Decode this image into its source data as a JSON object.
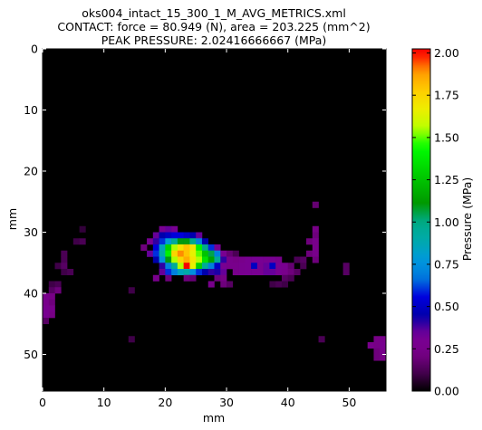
{
  "chart_data": {
    "type": "heatmap",
    "title_lines": [
      "oks004_intact_15_300_1_M_AVG_METRICS.xml",
      "CONTACT: force = 80.949 (N), area = 203.225 (mm^2)",
      "PEAK PRESSURE: 2.02416666667 (MPa)"
    ],
    "xlabel": "mm",
    "ylabel": "mm",
    "xlim": [
      0,
      56
    ],
    "ylim": [
      0,
      56
    ],
    "y_inverted": true,
    "x_ticks": [
      0,
      10,
      20,
      30,
      40,
      50
    ],
    "y_ticks": [
      0,
      10,
      20,
      30,
      40,
      50
    ],
    "colorbar": {
      "label": "Pressure (MPa)",
      "range": [
        0.0,
        2.02416666667
      ],
      "ticks": [
        "0.00",
        "0.25",
        "0.50",
        "0.75",
        "1.00",
        "1.25",
        "1.50",
        "1.75",
        "2.00"
      ],
      "colormap": "nipy_spectral"
    },
    "background_value": 0,
    "cells": [
      [
        44,
        25,
        0.18
      ],
      [
        6,
        29,
        0.08
      ],
      [
        44,
        29,
        0.22
      ],
      [
        19,
        29,
        0.3
      ],
      [
        20,
        29,
        0.35
      ],
      [
        21,
        29,
        0.3
      ],
      [
        44,
        30,
        0.2
      ],
      [
        5,
        31,
        0.1
      ],
      [
        6,
        31,
        0.12
      ],
      [
        43,
        31,
        0.2
      ],
      [
        44,
        31,
        0.25
      ],
      [
        18,
        30,
        0.35
      ],
      [
        19,
        30,
        0.45
      ],
      [
        20,
        30,
        0.5
      ],
      [
        21,
        30,
        0.55
      ],
      [
        22,
        30,
        0.55
      ],
      [
        23,
        30,
        0.5
      ],
      [
        24,
        30,
        0.45
      ],
      [
        25,
        30,
        0.35
      ],
      [
        17,
        31,
        0.3
      ],
      [
        18,
        31,
        0.4
      ],
      [
        19,
        31,
        0.6
      ],
      [
        20,
        31,
        0.8
      ],
      [
        21,
        31,
        0.95
      ],
      [
        22,
        31,
        1.1
      ],
      [
        23,
        31,
        1.1
      ],
      [
        24,
        31,
        1.0
      ],
      [
        25,
        31,
        0.7
      ],
      [
        26,
        31,
        0.45
      ],
      [
        16,
        32,
        0.2
      ],
      [
        18,
        32,
        0.55
      ],
      [
        19,
        32,
        0.85
      ],
      [
        20,
        32,
        1.3
      ],
      [
        21,
        32,
        1.55
      ],
      [
        22,
        32,
        1.7
      ],
      [
        23,
        32,
        1.8
      ],
      [
        24,
        32,
        1.7
      ],
      [
        25,
        32,
        1.4
      ],
      [
        26,
        32,
        1.0
      ],
      [
        27,
        32,
        0.6
      ],
      [
        28,
        32,
        0.3
      ],
      [
        44,
        32,
        0.25
      ],
      [
        3,
        33,
        0.12
      ],
      [
        17,
        33,
        0.35
      ],
      [
        18,
        33,
        0.6
      ],
      [
        19,
        33,
        0.9
      ],
      [
        20,
        33,
        1.4
      ],
      [
        21,
        33,
        1.75
      ],
      [
        22,
        33,
        1.9
      ],
      [
        23,
        33,
        1.8
      ],
      [
        24,
        33,
        1.65
      ],
      [
        25,
        33,
        1.5
      ],
      [
        26,
        33,
        1.25
      ],
      [
        27,
        33,
        1.05
      ],
      [
        28,
        33,
        0.7
      ],
      [
        29,
        33,
        0.3
      ],
      [
        30,
        33,
        0.18
      ],
      [
        31,
        33,
        0.12
      ],
      [
        43,
        33,
        0.2
      ],
      [
        44,
        33,
        0.25
      ],
      [
        3,
        34,
        0.12
      ],
      [
        18,
        34,
        0.45
      ],
      [
        19,
        34,
        0.75
      ],
      [
        20,
        34,
        1.1
      ],
      [
        21,
        34,
        1.55
      ],
      [
        22,
        34,
        1.75
      ],
      [
        23,
        34,
        1.85
      ],
      [
        24,
        34,
        1.7
      ],
      [
        25,
        34,
        1.55
      ],
      [
        26,
        34,
        1.35
      ],
      [
        27,
        34,
        1.15
      ],
      [
        28,
        34,
        0.95
      ],
      [
        29,
        34,
        0.4
      ],
      [
        30,
        34,
        0.25
      ],
      [
        31,
        34,
        0.22
      ],
      [
        32,
        34,
        0.25
      ],
      [
        33,
        34,
        0.3
      ],
      [
        34,
        34,
        0.32
      ],
      [
        35,
        34,
        0.32
      ],
      [
        36,
        34,
        0.3
      ],
      [
        37,
        34,
        0.3
      ],
      [
        38,
        34,
        0.25
      ],
      [
        41,
        34,
        0.12
      ],
      [
        42,
        34,
        0.15
      ],
      [
        44,
        34,
        0.2
      ],
      [
        2,
        35,
        0.1
      ],
      [
        3,
        35,
        0.15
      ],
      [
        19,
        35,
        0.4
      ],
      [
        20,
        35,
        0.7
      ],
      [
        21,
        35,
        0.95
      ],
      [
        22,
        35,
        1.55
      ],
      [
        23,
        35,
        2.02
      ],
      [
        24,
        35,
        1.65
      ],
      [
        25,
        35,
        1.3
      ],
      [
        26,
        35,
        0.95
      ],
      [
        27,
        35,
        0.7
      ],
      [
        28,
        35,
        0.5
      ],
      [
        29,
        35,
        0.3
      ],
      [
        30,
        35,
        0.25
      ],
      [
        31,
        35,
        0.25
      ],
      [
        32,
        35,
        0.28
      ],
      [
        33,
        35,
        0.3
      ],
      [
        34,
        35,
        0.5
      ],
      [
        35,
        35,
        0.3
      ],
      [
        36,
        35,
        0.35
      ],
      [
        37,
        35,
        0.5
      ],
      [
        38,
        35,
        0.3
      ],
      [
        39,
        35,
        0.28
      ],
      [
        40,
        35,
        0.18
      ],
      [
        42,
        35,
        0.12
      ],
      [
        49,
        35,
        0.15
      ],
      [
        3,
        36,
        0.1
      ],
      [
        4,
        36,
        0.12
      ],
      [
        19,
        36,
        0.35
      ],
      [
        20,
        36,
        0.6
      ],
      [
        21,
        36,
        0.7
      ],
      [
        22,
        36,
        0.85
      ],
      [
        23,
        36,
        0.9
      ],
      [
        24,
        36,
        0.75
      ],
      [
        25,
        36,
        0.6
      ],
      [
        26,
        36,
        0.45
      ],
      [
        27,
        36,
        0.4
      ],
      [
        28,
        36,
        0.42
      ],
      [
        29,
        36,
        0.35
      ],
      [
        31,
        36,
        0.25
      ],
      [
        32,
        36,
        0.28
      ],
      [
        33,
        36,
        0.3
      ],
      [
        34,
        36,
        0.3
      ],
      [
        35,
        36,
        0.3
      ],
      [
        36,
        36,
        0.35
      ],
      [
        37,
        36,
        0.35
      ],
      [
        38,
        36,
        0.3
      ],
      [
        39,
        36,
        0.25
      ],
      [
        40,
        36,
        0.2
      ],
      [
        41,
        36,
        0.15
      ],
      [
        49,
        36,
        0.15
      ],
      [
        18,
        37,
        0.25
      ],
      [
        20,
        37,
        0.2
      ],
      [
        23,
        37,
        0.2
      ],
      [
        24,
        37,
        0.18
      ],
      [
        28,
        37,
        0.2
      ],
      [
        29,
        37,
        0.22
      ],
      [
        39,
        37,
        0.15
      ],
      [
        40,
        37,
        0.12
      ],
      [
        1,
        38,
        0.1
      ],
      [
        2,
        38,
        0.12
      ],
      [
        27,
        38,
        0.25
      ],
      [
        29,
        38,
        0.2
      ],
      [
        30,
        38,
        0.15
      ],
      [
        37,
        38,
        0.1
      ],
      [
        38,
        38,
        0.12
      ],
      [
        39,
        38,
        0.1
      ],
      [
        1,
        39,
        0.15
      ],
      [
        2,
        39,
        0.2
      ],
      [
        14,
        39,
        0.1
      ],
      [
        0,
        40,
        0.25
      ],
      [
        1,
        40,
        0.22
      ],
      [
        0,
        41,
        0.25
      ],
      [
        1,
        41,
        0.2
      ],
      [
        0,
        42,
        0.28
      ],
      [
        1,
        42,
        0.25
      ],
      [
        0,
        43,
        0.3
      ],
      [
        1,
        43,
        0.22
      ],
      [
        0,
        44,
        0.15
      ],
      [
        14,
        47,
        0.1
      ],
      [
        45,
        47,
        0.12
      ],
      [
        54,
        47,
        0.22
      ],
      [
        55,
        47,
        0.25
      ],
      [
        53,
        48,
        0.25
      ],
      [
        54,
        48,
        0.22
      ],
      [
        55,
        48,
        0.28
      ],
      [
        54,
        49,
        0.2
      ],
      [
        55,
        49,
        0.25
      ],
      [
        54,
        50,
        0.2
      ],
      [
        55,
        50,
        0.22
      ]
    ]
  }
}
